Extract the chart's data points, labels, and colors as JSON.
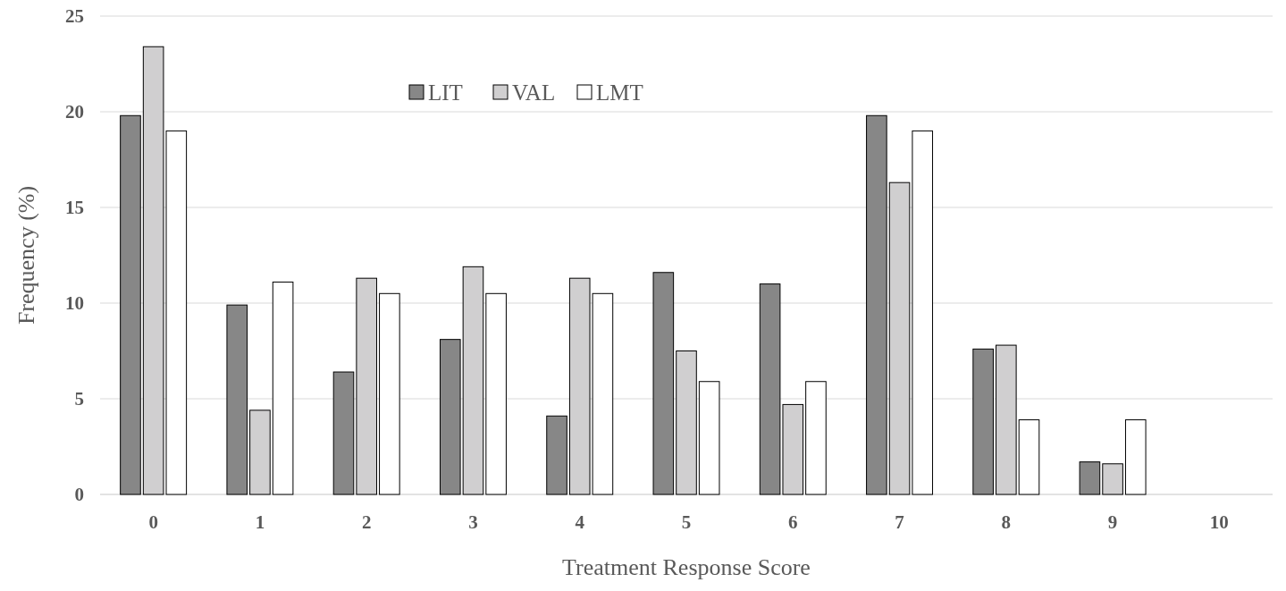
{
  "chart_data": {
    "type": "bar",
    "xlabel": "Treatment Response Score",
    "ylabel": "Frequency (%)",
    "categories": [
      "0",
      "1",
      "2",
      "3",
      "4",
      "5",
      "6",
      "7",
      "8",
      "9",
      "10"
    ],
    "series": [
      {
        "name": "LIT",
        "color": "#878787",
        "values": [
          19.8,
          9.9,
          6.4,
          8.1,
          4.1,
          11.6,
          11.0,
          19.8,
          7.6,
          1.7,
          0
        ]
      },
      {
        "name": "VAL",
        "color": "#d0cfd0",
        "values": [
          23.4,
          4.4,
          11.3,
          11.9,
          11.3,
          7.5,
          4.7,
          16.3,
          7.8,
          1.6,
          0
        ]
      },
      {
        "name": "LMT",
        "color": "#ffffff",
        "values": [
          19.0,
          11.1,
          10.5,
          10.5,
          10.5,
          5.9,
          5.9,
          19.0,
          3.9,
          3.9,
          0
        ]
      }
    ],
    "ylim": [
      0,
      25
    ],
    "yticks": [
      0,
      5,
      10,
      15,
      20,
      25
    ],
    "grid": "y",
    "legend": "top"
  }
}
